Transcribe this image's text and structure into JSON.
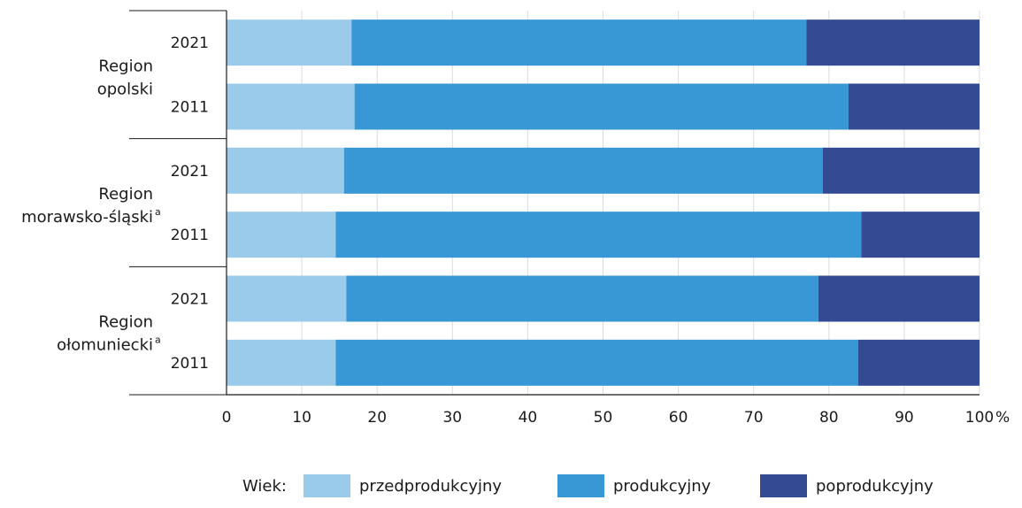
{
  "chart_data": {
    "type": "bar",
    "orientation": "horizontal",
    "stacked": true,
    "percent_unit": "%",
    "xlim": [
      0,
      100
    ],
    "xticks": [
      0,
      10,
      20,
      30,
      40,
      50,
      60,
      70,
      80,
      90,
      100
    ],
    "grid": true,
    "groups": [
      {
        "label_lines": [
          "Region",
          "opolski"
        ],
        "sup": "",
        "bars": [
          {
            "year": "2021",
            "values": [
              16.6,
              60.4,
              23.0
            ]
          },
          {
            "year": "2011",
            "values": [
              17.0,
              65.6,
              17.4
            ]
          }
        ]
      },
      {
        "label_lines": [
          "Region",
          "morawsko-śląski"
        ],
        "sup": "a",
        "bars": [
          {
            "year": "2021",
            "values": [
              15.6,
              63.6,
              20.8
            ]
          },
          {
            "year": "2011",
            "values": [
              14.5,
              69.8,
              15.7
            ]
          }
        ]
      },
      {
        "label_lines": [
          "Region",
          "ołomuniecki"
        ],
        "sup": "a",
        "bars": [
          {
            "year": "2021",
            "values": [
              15.9,
              62.7,
              21.4
            ]
          },
          {
            "year": "2011",
            "values": [
              14.5,
              69.4,
              16.1
            ]
          }
        ]
      }
    ],
    "series": [
      {
        "name": "przedprodukcyjny",
        "color": "#9bcbea"
      },
      {
        "name": "produkcyjny",
        "color": "#3897d5"
      },
      {
        "name": "poprodukcyjny",
        "color": "#344a93"
      }
    ],
    "legend": {
      "title": "Wiek:",
      "placement": "bottom"
    }
  }
}
